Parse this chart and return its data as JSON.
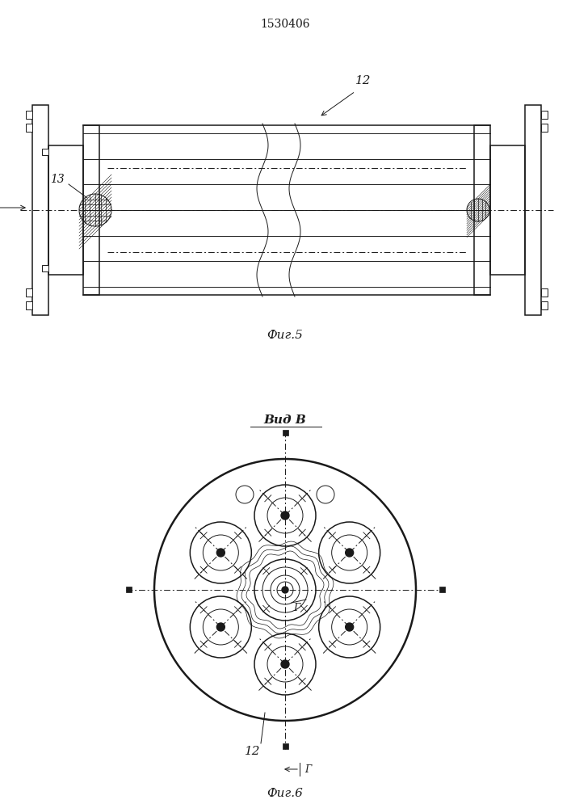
{
  "title": "1530406",
  "fig5_label": "Фиг.5",
  "fig6_label": "Фиг.6",
  "vid_b_label": "Вид В",
  "label_12": "12",
  "label_13": "13",
  "label_B": "В",
  "label_G_circle": "Г",
  "label_G_arrow": "Г",
  "lc": "#1a1a1a",
  "bg": "#ffffff",
  "lw_thin": 0.7,
  "lw_med": 1.1,
  "lw_thick": 1.8
}
